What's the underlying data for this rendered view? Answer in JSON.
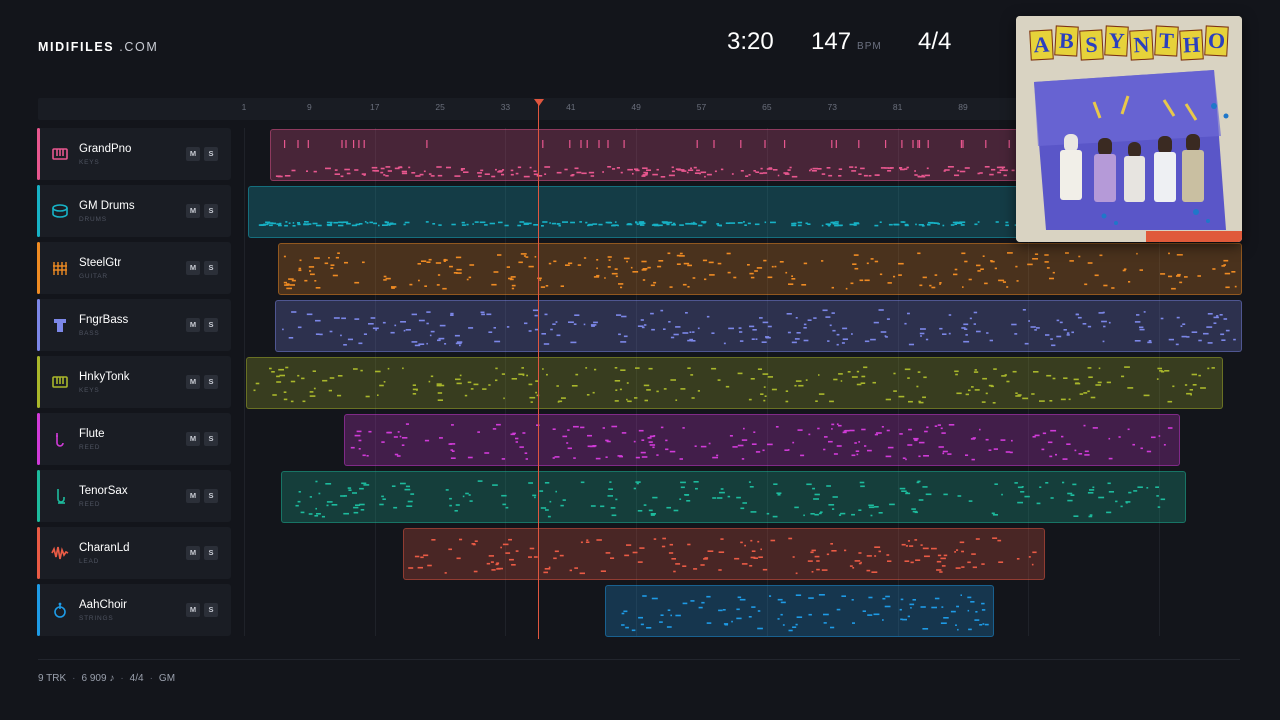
{
  "header": {
    "logo_bold": "MIDIFILES",
    "logo_light": " .COM",
    "time": "3:20",
    "tempo": "147",
    "tempo_unit": "BPM",
    "meter": "4/4"
  },
  "ruler": {
    "ticks": [
      "1",
      "9",
      "17",
      "25",
      "33",
      "41",
      "49",
      "57",
      "65",
      "73",
      "81",
      "89"
    ]
  },
  "playhead_bar": 37,
  "tracks": [
    {
      "name": "GrandPno",
      "category": "KEYS",
      "color": "#e8578f",
      "icon": "piano-icon",
      "mute": "M",
      "solo": "S"
    },
    {
      "name": "GM Drums",
      "category": "DRUMS",
      "color": "#17b2c6",
      "icon": "drum-icon",
      "mute": "M",
      "solo": "S"
    },
    {
      "name": "SteelGtr",
      "category": "GUITAR",
      "color": "#ef8b23",
      "icon": "guitar-icon",
      "mute": "M",
      "solo": "S"
    },
    {
      "name": "FngrBass",
      "category": "BASS",
      "color": "#7c87e8",
      "icon": "bass-icon",
      "mute": "M",
      "solo": "S"
    },
    {
      "name": "HnkyTonk",
      "category": "KEYS",
      "color": "#a9b72b",
      "icon": "piano-icon",
      "mute": "M",
      "solo": "S"
    },
    {
      "name": "Flute",
      "category": "REED",
      "color": "#d03bd8",
      "icon": "flute-icon",
      "mute": "M",
      "solo": "S"
    },
    {
      "name": "TenorSax",
      "category": "REED",
      "color": "#1dbb9d",
      "icon": "sax-icon",
      "mute": "M",
      "solo": "S"
    },
    {
      "name": "CharanLd",
      "category": "LEAD",
      "color": "#ea5b45",
      "icon": "lead-wave-icon",
      "mute": "M",
      "solo": "S"
    },
    {
      "name": "AahChoir",
      "category": "STRINGS",
      "color": "#1e9be6",
      "icon": "choir-icon",
      "mute": "M",
      "solo": "S"
    }
  ],
  "album": {
    "title": "ABSYNTHO",
    "art_colors": [
      "#e6d23a",
      "#2a3fbf",
      "#5a56c8",
      "#e05a3a"
    ]
  },
  "footer": {
    "tracks": "9 TRK",
    "notes": "6 909 ♪",
    "meter": "4/4",
    "format": "GM"
  }
}
